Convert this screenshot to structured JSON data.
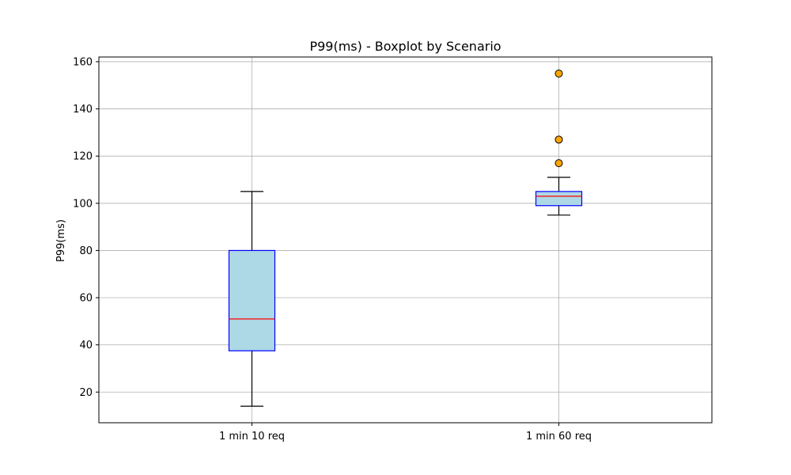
{
  "chart_data": {
    "type": "boxplot",
    "title": "P99(ms) - Boxplot by Scenario",
    "xlabel": "",
    "ylabel": "P99(ms)",
    "categories": [
      "1 min 10 req",
      "1 min 60 req"
    ],
    "ylim": [
      7,
      162
    ],
    "yticks": [
      20,
      40,
      60,
      80,
      100,
      120,
      140,
      160
    ],
    "grid": true,
    "boxes": [
      {
        "category": "1 min 10 req",
        "whisker_low": 14,
        "q1": 37.5,
        "median": 51,
        "q3": 80,
        "whisker_high": 105,
        "outliers": []
      },
      {
        "category": "1 min 60 req",
        "whisker_low": 95,
        "q1": 99,
        "median": 103,
        "q3": 105,
        "whisker_high": 111,
        "outliers": [
          117,
          127,
          155
        ]
      }
    ],
    "colors": {
      "box_fill": "#add8e6",
      "box_edge": "#0000ff",
      "median": "#ff0000",
      "whisker": "#000000",
      "outlier_fill": "#ffa500",
      "outlier_edge": "#000000",
      "grid": "#b0b0b0",
      "axes": "#000000"
    }
  }
}
